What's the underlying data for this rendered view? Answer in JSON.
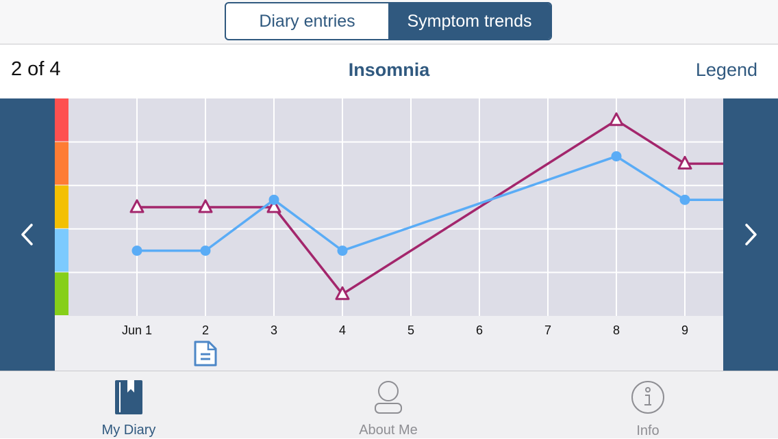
{
  "segments": [
    {
      "label": "Diary entries",
      "active": false
    },
    {
      "label": "Symptom trends",
      "active": true
    }
  ],
  "header": {
    "pager": "2 of 4",
    "title": "Insomnia",
    "legend_label": "Legend"
  },
  "severity_colors": [
    "#fe5050",
    "#fe7c34",
    "#f3c003",
    "#7ccafe",
    "#86cf1a"
  ],
  "icons": {
    "prev": "chevron-left-icon",
    "next": "chevron-right-icon",
    "note": "document-icon",
    "my_diary": "bookmark-book-icon",
    "about_me": "person-icon",
    "info": "info-icon"
  },
  "colors": {
    "accent": "#30597f",
    "series_triangle": "#a3266c",
    "series_circle": "#5aacf6",
    "grid_background": "#dddde7"
  },
  "chart_data": {
    "type": "line",
    "x": [
      "Jun 1",
      "2",
      "3",
      "4",
      "5",
      "6",
      "7",
      "8",
      "9"
    ],
    "ylim": [
      0,
      5
    ],
    "grid": true,
    "series": [
      {
        "marker": "triangle",
        "color": "#a3266c",
        "values": [
          2.5,
          2.5,
          2.5,
          0.5,
          null,
          null,
          null,
          4.5,
          3.5
        ],
        "continues_right": 3.5
      },
      {
        "marker": "circle",
        "color": "#5aacf6",
        "values": [
          1.5,
          1.5,
          2.67,
          1.5,
          null,
          null,
          null,
          3.67,
          2.67
        ],
        "continues_right": 2.67
      }
    ],
    "note_on": "2"
  },
  "tabs": [
    {
      "label": "My Diary",
      "active": true
    },
    {
      "label": "About Me",
      "active": false
    },
    {
      "label": "Info",
      "active": false
    }
  ]
}
